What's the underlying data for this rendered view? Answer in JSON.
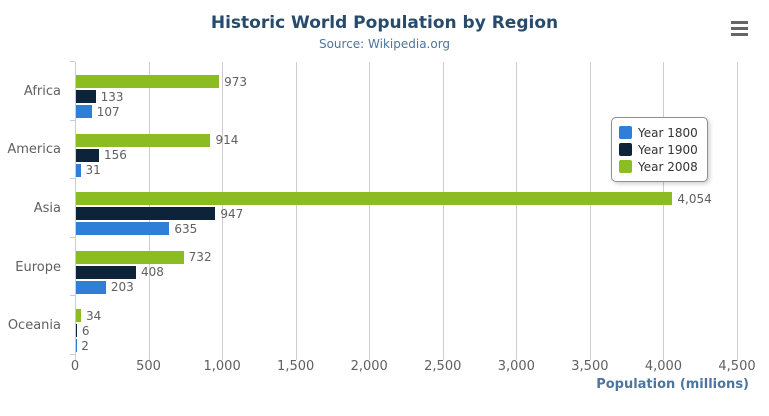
{
  "header": {
    "title": "Historic World Population by Region",
    "subtitle": "Source: Wikipedia.org"
  },
  "export_menu": {
    "icon": "hamburger-menu-icon",
    "color": "#666666"
  },
  "colors": {
    "title": "#274b6d",
    "subtitle": "#4d759e",
    "axis_label": "#606060",
    "data_label": "#606060",
    "legend_text": "#333333",
    "gridline": "#cdcdcd",
    "axis_line": "#c0d0e0",
    "legend_border": "#909090"
  },
  "chart_data": {
    "type": "bar",
    "orientation": "horizontal",
    "title": "Historic World Population by Region",
    "subtitle": "Source: Wikipedia.org",
    "categories": [
      "Africa",
      "America",
      "Asia",
      "Europe",
      "Oceania"
    ],
    "series": [
      {
        "name": "Year 1800",
        "color": "#2f7ed8",
        "values": [
          107,
          31,
          635,
          203,
          2
        ]
      },
      {
        "name": "Year 1900",
        "color": "#0d233a",
        "values": [
          133,
          156,
          947,
          408,
          6
        ]
      },
      {
        "name": "Year 2008",
        "color": "#8bbc21",
        "values": [
          973,
          914,
          4054,
          732,
          34
        ]
      }
    ],
    "bar_display_order_top_to_bottom": [
      "Year 2008",
      "Year 1900",
      "Year 1800"
    ],
    "data_labels_shown": true,
    "xlabel": "Population (millions)",
    "ylabel": "",
    "xlim": [
      0,
      4500
    ],
    "tick_interval": 500,
    "tick_labels": [
      "0",
      "500",
      "1,000",
      "1,500",
      "2,000",
      "2,500",
      "3,000",
      "3,500",
      "4,000",
      "4,500"
    ],
    "grid": true,
    "legend": {
      "position": "right",
      "entries": [
        "Year 1800",
        "Year 1900",
        "Year 2008"
      ]
    }
  }
}
